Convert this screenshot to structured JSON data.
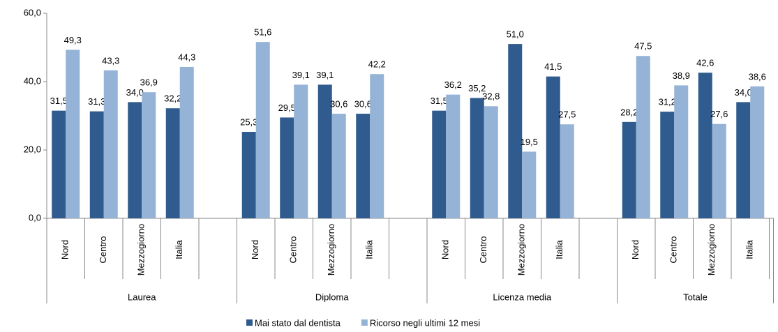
{
  "chart_data": {
    "type": "bar",
    "groups": [
      "Laurea",
      "Diploma",
      "Licenza media",
      "Totale"
    ],
    "categories": [
      "Nord",
      "Centro",
      "Mezzogiorno",
      "Italia",
      "Nord",
      "Centro",
      "Mezzogiorno",
      "Italia",
      "Nord",
      "Centro",
      "Mezzogiorno",
      "Italia",
      "Nord",
      "Centro",
      "Mezzogiorno",
      "Italia"
    ],
    "series": [
      {
        "name": "Mai stato dal dentista",
        "color": "#2f5b8e",
        "values": [
          31.5,
          31.3,
          34.0,
          32.2,
          25.3,
          29.5,
          39.1,
          30.6,
          31.5,
          35.2,
          51.0,
          41.5,
          28.2,
          31.2,
          42.6,
          34.0
        ],
        "value_labels": [
          "31,5",
          "31,3",
          "34,0",
          "32,2",
          "25,3",
          "29,5",
          "39,1",
          "30,6",
          "31,5",
          "35,2",
          "51,0",
          "41,5",
          "28,2",
          "31,2",
          "42,6",
          "34,0"
        ]
      },
      {
        "name": "Ricorso negli ultimi 12 mesi",
        "color": "#95b3d7",
        "values": [
          49.3,
          43.3,
          36.9,
          44.3,
          51.6,
          39.1,
          30.6,
          42.2,
          36.2,
          32.8,
          19.5,
          27.5,
          47.5,
          38.9,
          27.6,
          38.6
        ],
        "value_labels": [
          "49,3",
          "43,3",
          "36,9",
          "44,3",
          "51,6",
          "39,1",
          "30,6",
          "42,2",
          "36,2",
          "32,8",
          "19,5",
          "27,5",
          "47,5",
          "38,9",
          "27,6",
          "38,6"
        ]
      }
    ],
    "ylim": [
      0,
      60
    ],
    "yticks": [
      {
        "value": 0,
        "label": "0,0"
      },
      {
        "value": 20,
        "label": "20,0"
      },
      {
        "value": 40,
        "label": "40,0"
      },
      {
        "value": 60,
        "label": "60,0"
      }
    ]
  }
}
